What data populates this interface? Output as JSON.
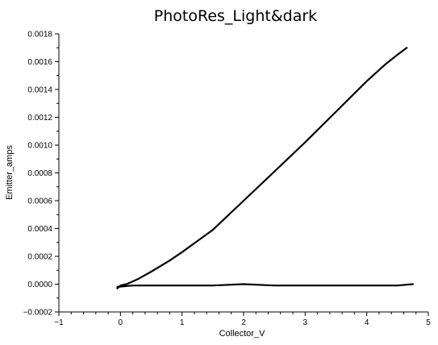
{
  "chart_data": {
    "type": "line",
    "title": "PhotoRes_Light&dark",
    "xlabel": "Collector_V",
    "ylabel": "Emitter_amps",
    "xlim": [
      -1,
      5
    ],
    "ylim": [
      -0.0002,
      0.0018
    ],
    "xticks": [
      "−1",
      "0",
      "1",
      "2",
      "3",
      "4",
      "5"
    ],
    "yticks": [
      "−0.0002",
      "0.0000",
      "0.0002",
      "0.0004",
      "0.0006",
      "0.0008",
      "0.0010",
      "0.0012",
      "0.0014",
      "0.0016",
      "0.0018"
    ],
    "grid": false,
    "series": [
      {
        "color": "#000000",
        "x": [
          -0.05,
          0.0,
          0.1,
          0.2,
          0.3,
          0.5,
          0.8,
          1.0,
          1.5,
          2.0,
          2.5,
          3.0,
          3.5,
          4.0,
          4.3,
          4.5,
          4.65
        ],
        "y": [
          -3e-05,
          -1e-05,
          0.0,
          2e-05,
          4e-05,
          9e-05,
          0.00017,
          0.00023,
          0.00039,
          0.0006,
          0.00081,
          0.00102,
          0.00124,
          0.00146,
          0.00158,
          0.00165,
          0.0017
        ]
      },
      {
        "color": "#000000",
        "x": [
          -0.05,
          0.2,
          0.5,
          1.0,
          1.5,
          2.0,
          2.5,
          3.0,
          3.5,
          4.0,
          4.5,
          4.75
        ],
        "y": [
          -2e-05,
          -1e-05,
          -1e-05,
          -1e-05,
          -1e-05,
          0.0,
          -1e-05,
          -1e-05,
          -1e-05,
          -1e-05,
          -1e-05,
          0.0
        ]
      }
    ]
  }
}
